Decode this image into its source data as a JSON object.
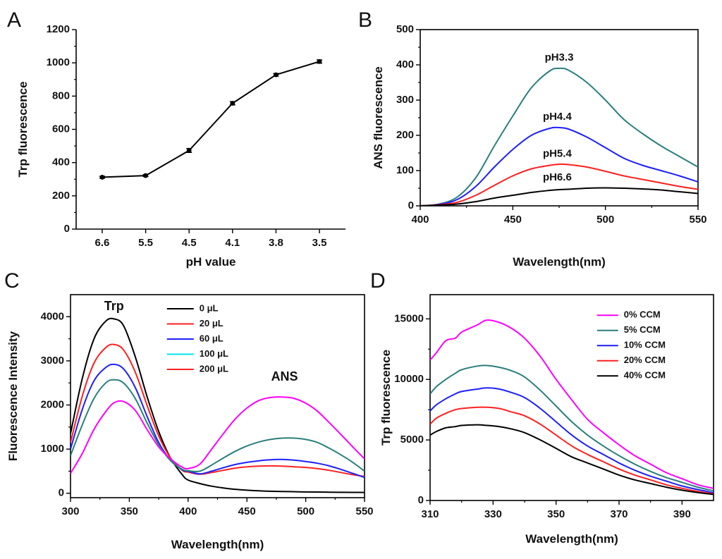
{
  "chart_data": [
    {
      "id": "A",
      "panel_label": "A",
      "type": "line",
      "xlabel": "pH value",
      "ylabel": "Trp fluorescence",
      "categories": [
        "6.6",
        "5.5",
        "4.5",
        "4.1",
        "3.8",
        "3.5"
      ],
      "ylim": [
        0,
        1200
      ],
      "yticks": [
        0,
        200,
        400,
        600,
        800,
        1000,
        1200
      ],
      "series": [
        {
          "name": "Trp fluorescence",
          "color": "#000000",
          "values": [
            312,
            322,
            473,
            757,
            928,
            1008
          ],
          "errors": [
            6,
            6,
            12,
            10,
            8,
            10
          ]
        }
      ]
    },
    {
      "id": "B",
      "panel_label": "B",
      "type": "line",
      "xlabel": "Wavelength(nm)",
      "ylabel": "ANS fluorescence",
      "xlim": [
        400,
        550
      ],
      "ylim": [
        0,
        500
      ],
      "xticks": [
        400,
        450,
        500,
        550
      ],
      "yticks": [
        0,
        100,
        200,
        300,
        400,
        500
      ],
      "x": [
        400,
        410,
        420,
        430,
        440,
        450,
        460,
        470,
        475,
        480,
        490,
        500,
        510,
        520,
        530,
        540,
        550
      ],
      "series": [
        {
          "name": "pH3.3",
          "color": "#2a7f7a",
          "values": [
            0,
            5,
            25,
            80,
            170,
            255,
            335,
            383,
            390,
            385,
            350,
            300,
            245,
            205,
            170,
            140,
            110
          ]
        },
        {
          "name": "pH4.4",
          "color": "#1f1fff",
          "values": [
            0,
            4,
            18,
            55,
            110,
            160,
            200,
            220,
            222,
            218,
            195,
            165,
            135,
            115,
            100,
            85,
            68
          ]
        },
        {
          "name": "pH5.4",
          "color": "#ff2020",
          "values": [
            0,
            3,
            10,
            30,
            58,
            85,
            105,
            115,
            118,
            117,
            110,
            98,
            85,
            75,
            65,
            55,
            47
          ]
        },
        {
          "name": "pH6.6",
          "color": "#000000",
          "values": [
            0,
            2,
            5,
            12,
            22,
            30,
            38,
            44,
            46,
            47,
            50,
            51,
            50,
            48,
            45,
            40,
            35
          ]
        }
      ],
      "annotations": [
        "pH3.3",
        "pH4.4",
        "pH5.4",
        "pH6.6"
      ]
    },
    {
      "id": "C",
      "panel_label": "C",
      "type": "line",
      "xlabel": "Wavelength(nm)",
      "ylabel": "Fluorescence Intensity",
      "xlim": [
        300,
        550
      ],
      "ylim": [
        -100,
        4500
      ],
      "xticks": [
        300,
        350,
        400,
        450,
        500,
        550
      ],
      "yticks": [
        0,
        1000,
        2000,
        3000,
        4000
      ],
      "x": [
        300,
        310,
        320,
        330,
        337,
        345,
        355,
        365,
        375,
        385,
        395,
        400,
        410,
        420,
        430,
        440,
        450,
        460,
        470,
        480,
        490,
        500,
        510,
        520,
        530,
        540,
        550
      ],
      "series": [
        {
          "name": "0 μL",
          "color": "#000000",
          "values": [
            1350,
            2600,
            3500,
            3900,
            3950,
            3800,
            3100,
            2200,
            1400,
            800,
            420,
            300,
            220,
            160,
            120,
            90,
            70,
            55,
            45,
            40,
            35,
            30,
            28,
            25,
            22,
            20,
            18
          ]
        },
        {
          "name": "20 μL",
          "color": "#ff2020",
          "values": [
            1150,
            2200,
            2950,
            3300,
            3370,
            3250,
            2750,
            2000,
            1300,
            800,
            520,
            480,
            430,
            470,
            520,
            570,
            600,
            615,
            620,
            615,
            600,
            585,
            560,
            520,
            470,
            420,
            380
          ]
        },
        {
          "name": "60 μL",
          "color": "#1f1fff",
          "values": [
            1000,
            1900,
            2550,
            2850,
            2920,
            2820,
            2400,
            1750,
            1150,
            750,
            530,
            500,
            440,
            500,
            580,
            650,
            700,
            735,
            760,
            765,
            750,
            720,
            680,
            620,
            540,
            450,
            360
          ]
        },
        {
          "name": "100 μL",
          "color": "#2a7f7a",
          "values": [
            850,
            1550,
            2150,
            2500,
            2570,
            2500,
            2150,
            1600,
            1100,
            740,
            540,
            510,
            500,
            640,
            800,
            950,
            1070,
            1160,
            1220,
            1250,
            1250,
            1220,
            1150,
            1020,
            870,
            700,
            500
          ]
        },
        {
          "name": "200 μL",
          "color": "#ff00ff",
          "values": [
            450,
            900,
            1450,
            1850,
            2050,
            2080,
            1880,
            1450,
            1050,
            780,
            590,
            560,
            660,
            1000,
            1350,
            1680,
            1930,
            2100,
            2170,
            2180,
            2150,
            2040,
            1860,
            1600,
            1330,
            1050,
            780
          ]
        }
      ],
      "legend_colors": [
        "#000000",
        "#ff2020",
        "#1f1fff",
        "#00e5ee",
        "#ff2020"
      ],
      "legend_position": "top-right",
      "annotations": [
        "Trp",
        "ANS"
      ]
    },
    {
      "id": "D",
      "panel_label": "D",
      "type": "line",
      "xlabel": "Wavelength(nm)",
      "ylabel": "Trp fluorescence",
      "xlim": [
        310,
        400
      ],
      "ylim": [
        0,
        17000
      ],
      "xticks": [
        310,
        330,
        350,
        370,
        390
      ],
      "yticks": [
        0,
        5000,
        10000,
        15000
      ],
      "x": [
        310,
        312,
        315,
        318,
        320,
        325,
        328,
        332,
        336,
        340,
        345,
        350,
        355,
        360,
        365,
        370,
        375,
        380,
        385,
        390,
        395,
        400
      ],
      "series": [
        {
          "name": "0% CCM",
          "color": "#ff00ff",
          "values": [
            11600,
            12200,
            13200,
            13400,
            13900,
            14500,
            14900,
            14700,
            14200,
            13400,
            11900,
            10000,
            8300,
            6700,
            5600,
            4600,
            3700,
            3000,
            2300,
            1800,
            1300,
            1000
          ]
        },
        {
          "name": "5% CCM",
          "color": "#2a7f7a",
          "values": [
            8800,
            9400,
            10000,
            10500,
            10800,
            11100,
            11150,
            11000,
            10700,
            10200,
            9100,
            7800,
            6500,
            5400,
            4500,
            3700,
            3000,
            2400,
            1900,
            1500,
            1100,
            800
          ]
        },
        {
          "name": "10% CCM",
          "color": "#1f1fff",
          "values": [
            7400,
            7900,
            8400,
            8800,
            9000,
            9200,
            9300,
            9200,
            8900,
            8500,
            7600,
            6500,
            5400,
            4500,
            3800,
            3100,
            2500,
            2000,
            1600,
            1200,
            900,
            650
          ]
        },
        {
          "name": "20% CCM",
          "color": "#ff2020",
          "values": [
            6300,
            6800,
            7200,
            7500,
            7600,
            7700,
            7700,
            7600,
            7300,
            7000,
            6300,
            5400,
            4500,
            3800,
            3200,
            2600,
            2100,
            1700,
            1300,
            1000,
            750,
            550
          ]
        },
        {
          "name": "40% CCM",
          "color": "#000000",
          "values": [
            5400,
            5700,
            6000,
            6100,
            6200,
            6250,
            6200,
            6100,
            5900,
            5600,
            5000,
            4300,
            3600,
            3100,
            2600,
            2100,
            1700,
            1400,
            1100,
            850,
            650,
            500
          ]
        }
      ],
      "legend_position": "top-right"
    }
  ]
}
